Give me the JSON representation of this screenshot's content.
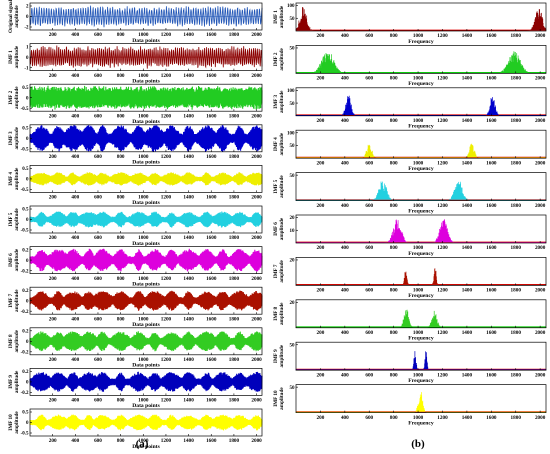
{
  "figure": {
    "panel_labels": [
      "(a)",
      "(b)"
    ]
  },
  "colors": {
    "original": "#2458b8",
    "imf1": "#8b0000",
    "imf2": "#22cc22",
    "imf3": "#0000cc",
    "imf4": "#eeee00",
    "imf5": "#22d0e0",
    "imf6": "#dd00dd",
    "imf7": "#aa1100",
    "imf8": "#33cc22",
    "imf9": "#0000bb",
    "imf10": "#ffff00",
    "spectrum_baseline_red": "#e00000",
    "spectrum_baseline_green": "#00cc00"
  },
  "chart_data": [
    {
      "panel": "(a)",
      "type": "line",
      "description_kind": "time-domain signal decomposition",
      "xlabel": "Data points",
      "xlim": [
        0,
        2048
      ],
      "xticks": [
        200,
        400,
        600,
        800,
        1000,
        1200,
        1400,
        1600,
        1800,
        2000
      ],
      "series": [
        {
          "name": "Original signal",
          "ylabel": [
            "Original signal",
            "amplitude"
          ],
          "color_key": "original",
          "ylim": [
            -2,
            2
          ],
          "yticks": [
            "2",
            "0",
            "-2"
          ],
          "amplitude": 1.7
        },
        {
          "name": "IMF 1",
          "ylabel": [
            "IMF 1",
            "amplitude"
          ],
          "color_key": "imf1",
          "ylim": [
            -1,
            1
          ],
          "yticks": [
            "1",
            "0",
            "-1"
          ],
          "amplitude": 0.9
        },
        {
          "name": "IMF 2",
          "ylabel": [
            "IMF 2",
            "amplitude"
          ],
          "color_key": "imf2",
          "ylim": [
            -0.5,
            0.5
          ],
          "yticks": [
            "0.5",
            "0",
            "-0.5"
          ],
          "amplitude": 0.45
        },
        {
          "name": "IMF 3",
          "ylabel": [
            "IMF 3",
            "amplitude"
          ],
          "color_key": "imf3",
          "ylim": [
            -0.5,
            0.5
          ],
          "yticks": [
            "0.5",
            "0",
            "-0.5"
          ],
          "amplitude": 0.5
        },
        {
          "name": "IMF 4",
          "ylabel": [
            "IMF 4",
            "amplitude"
          ],
          "color_key": "imf4",
          "ylim": [
            -0.5,
            0.5
          ],
          "yticks": [
            "0.5",
            "0",
            "-0.5"
          ],
          "amplitude": 0.25
        },
        {
          "name": "IMF 5",
          "ylabel": [
            "IMF 5",
            "amplitude"
          ],
          "color_key": "imf5",
          "ylim": [
            -0.5,
            0.5
          ],
          "yticks": [
            "0.5",
            "0",
            "-0.5"
          ],
          "amplitude": 0.3
        },
        {
          "name": "IMF 6",
          "ylabel": [
            "IMF 6",
            "amplitude"
          ],
          "color_key": "imf6",
          "ylim": [
            -0.2,
            0.2
          ],
          "yticks": [
            "0.2",
            "0",
            "-0.2"
          ],
          "amplitude": 0.17
        },
        {
          "name": "IMF 7",
          "ylabel": [
            "IMF 7",
            "amplitude"
          ],
          "color_key": "imf7",
          "ylim": [
            -0.2,
            0.2
          ],
          "yticks": [
            "0.2",
            "0",
            "-0.2"
          ],
          "amplitude": 0.15
        },
        {
          "name": "IMF 8",
          "ylabel": [
            "IMF 8",
            "amplitude"
          ],
          "color_key": "imf8",
          "ylim": [
            -0.2,
            0.2
          ],
          "yticks": [
            "0.2",
            "0",
            "-0.2"
          ],
          "amplitude": 0.15
        },
        {
          "name": "IMF 9",
          "ylabel": [
            "IMF 9",
            "amplitude"
          ],
          "color_key": "imf9",
          "ylim": [
            -0.2,
            0.2
          ],
          "yticks": [
            "0.2",
            "0",
            "-0.2"
          ],
          "amplitude": 0.15
        },
        {
          "name": "IMF 10",
          "ylabel": [
            "IMF 10",
            "amplitude"
          ],
          "color_key": "imf10",
          "ylim": [
            -0.5,
            0.5
          ],
          "yticks": [
            "0.5",
            "0",
            "-0.5"
          ],
          "amplitude": 0.3
        }
      ]
    },
    {
      "panel": "(b)",
      "type": "area",
      "description_kind": "frequency spectra of IMFs",
      "xlabel": "Frequency",
      "xlim": [
        0,
        2048
      ],
      "xticks": [
        200,
        400,
        600,
        800,
        1000,
        1200,
        1400,
        1600,
        1800,
        2000
      ],
      "series": [
        {
          "name": "IMF 1",
          "ylabel": [
            "IMF 1",
            "amplitude"
          ],
          "color_key": "imf1",
          "baseline_key": "spectrum_baseline_red",
          "ylim": [
            0,
            110
          ],
          "yticks": [
            "100",
            "50"
          ],
          "peaks": [
            [
              60,
              40,
              100
            ],
            [
              1988,
              40,
              100
            ]
          ]
        },
        {
          "name": "IMF 2",
          "ylabel": [
            "IMF 2",
            "amplitude"
          ],
          "color_key": "imf2",
          "baseline_key": "spectrum_baseline_green",
          "ylim": [
            0,
            55
          ],
          "yticks": [
            "50"
          ],
          "peaks": [
            [
              260,
              70,
              45
            ],
            [
              1790,
              70,
              45
            ]
          ]
        },
        {
          "name": "IMF 3",
          "ylabel": [
            "IMF 3",
            "amplitude"
          ],
          "color_key": "imf3",
          "baseline_key": "spectrum_baseline_red",
          "ylim": [
            0,
            110
          ],
          "yticks": [
            "100",
            "50"
          ],
          "peaks": [
            [
              430,
              30,
              85
            ],
            [
              1610,
              30,
              85
            ]
          ]
        },
        {
          "name": "IMF 4",
          "ylabel": [
            "IMF 4",
            "amplitude"
          ],
          "color_key": "imf4",
          "baseline_key": "spectrum_baseline_red",
          "ylim": [
            0,
            110
          ],
          "yticks": [
            "100",
            "50"
          ],
          "peaks": [
            [
              600,
              30,
              60
            ],
            [
              1440,
              30,
              60
            ]
          ]
        },
        {
          "name": "IMF 5",
          "ylabel": [
            "IMF 5",
            "amplitude"
          ],
          "color_key": "imf5",
          "baseline_key": "spectrum_baseline_red",
          "ylim": [
            0,
            55
          ],
          "yticks": [
            "50"
          ],
          "peaks": [
            [
              710,
              45,
              42
            ],
            [
              1330,
              45,
              42
            ]
          ]
        },
        {
          "name": "IMF 6",
          "ylabel": [
            "IMF 6",
            "amplitude"
          ],
          "color_key": "imf6",
          "baseline_key": "spectrum_baseline_red",
          "ylim": [
            0,
            22
          ],
          "yticks": [
            "20",
            "10"
          ],
          "peaks": [
            [
              830,
              45,
              20
            ],
            [
              1210,
              45,
              20
            ]
          ]
        },
        {
          "name": "IMF 7",
          "ylabel": [
            "IMF 7",
            "amplitude"
          ],
          "color_key": "imf7",
          "baseline_key": "spectrum_baseline_red",
          "ylim": [
            0,
            22
          ],
          "yticks": [
            "20"
          ],
          "peaks": [
            [
              900,
              14,
              15
            ],
            [
              1140,
              14,
              15
            ]
          ]
        },
        {
          "name": "IMF 8",
          "ylabel": [
            "IMF 8",
            "amplitude"
          ],
          "color_key": "imf8",
          "baseline_key": "spectrum_baseline_green",
          "ylim": [
            0,
            22
          ],
          "yticks": [
            "20"
          ],
          "peaks": [
            [
              905,
              30,
              15
            ],
            [
              1135,
              30,
              15
            ]
          ]
        },
        {
          "name": "IMF 9",
          "ylabel": [
            "IMF 9",
            "amplitude"
          ],
          "color_key": "imf9",
          "baseline_key": "spectrum_baseline_red",
          "ylim": [
            0,
            55
          ],
          "yticks": [
            "50"
          ],
          "peaks": [
            [
              975,
              12,
              45
            ],
            [
              1065,
              12,
              45
            ]
          ]
        },
        {
          "name": "IMF 10",
          "ylabel": [
            "IMF 10",
            "amplitude"
          ],
          "color_key": "imf10",
          "baseline_key": "spectrum_baseline_red",
          "ylim": [
            0,
            55
          ],
          "yticks": [
            "50"
          ],
          "peaks": [
            [
              1020,
              25,
              45
            ]
          ]
        }
      ]
    }
  ]
}
